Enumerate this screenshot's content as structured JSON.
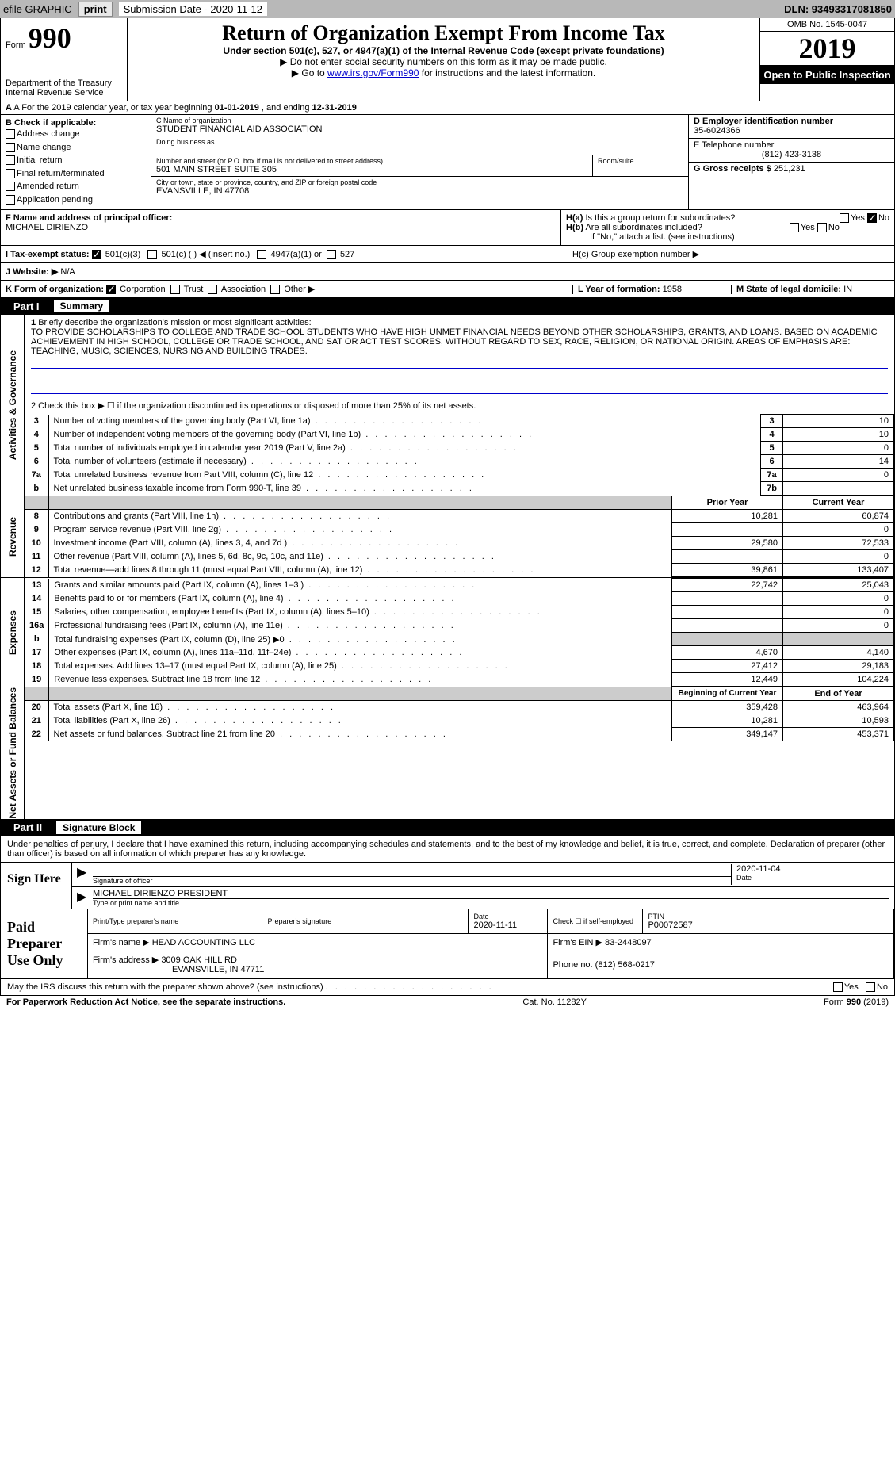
{
  "topbar": {
    "efile_label": "efile GRAPHIC",
    "print_btn": "print",
    "sub_date_label": "Submission Date - 2020-11-12",
    "dln": "DLN: 93493317081850"
  },
  "header": {
    "form_word": "Form",
    "form_number": "990",
    "dept": "Department of the Treasury\nInternal Revenue Service",
    "title": "Return of Organization Exempt From Income Tax",
    "subtitle": "Under section 501(c), 527, or 4947(a)(1) of the Internal Revenue Code (except private foundations)",
    "line1": "▶ Do not enter social security numbers on this form as it may be made public.",
    "line2_pre": "▶ Go to ",
    "line2_link": "www.irs.gov/Form990",
    "line2_post": " for instructions and the latest information.",
    "omb": "OMB No. 1545-0047",
    "year": "2019",
    "open_public": "Open to Public Inspection"
  },
  "row_a": {
    "text_pre": "A For the 2019 calendar year, or tax year beginning ",
    "begin": "01-01-2019",
    "mid": " , and ending ",
    "end": "12-31-2019"
  },
  "section_b": {
    "header": "B Check if applicable:",
    "addr_change": "Address change",
    "name_change": "Name change",
    "initial_return": "Initial return",
    "final_return": "Final return/terminated",
    "amended": "Amended return",
    "app_pending": "Application pending"
  },
  "section_c": {
    "name_label": "C Name of organization",
    "org_name": "STUDENT FINANCIAL AID ASSOCIATION",
    "dba_label": "Doing business as",
    "dba": "",
    "street_label": "Number and street (or P.O. box if mail is not delivered to street address)",
    "street": "501 MAIN STREET SUITE 305",
    "room_label": "Room/suite",
    "city_label": "City or town, state or province, country, and ZIP or foreign postal code",
    "city": "EVANSVILLE, IN  47708"
  },
  "section_d": {
    "ein_label": "D Employer identification number",
    "ein": "35-6024366",
    "phone_label": "E Telephone number",
    "phone": "(812) 423-3138",
    "gross_label": "G Gross receipts $",
    "gross": "251,231"
  },
  "section_f": {
    "label": "F Name and address of principal officer:",
    "name": "MICHAEL DIRIENZO"
  },
  "section_h": {
    "ha_label": "H(a) Is this a group return for subordinates?",
    "hb_label": "H(b) Are all subordinates included?",
    "hb_note": "If \"No,\" attach a list. (see instructions)",
    "hc_label": "H(c) Group exemption number ▶",
    "yes": "Yes",
    "no": "No"
  },
  "row_i": {
    "label": "I   Tax-exempt status:",
    "c3": "501(c)(3)",
    "c": "501(c) (   ) ◀ (insert no.)",
    "a1": "4947(a)(1) or",
    "s527": "527"
  },
  "row_j": {
    "label": "J   Website: ▶",
    "value": "N/A"
  },
  "row_k": {
    "label": "K Form of organization:",
    "corp": "Corporation",
    "trust": "Trust",
    "assoc": "Association",
    "other": "Other ▶",
    "l_label": "L Year of formation:",
    "l_value": "1958",
    "m_label": "M State of legal domicile:",
    "m_value": "IN"
  },
  "part1": {
    "part_num": "Part I",
    "title": "Summary"
  },
  "governance": {
    "side": "Activities & Governance",
    "line1_label": "1  Briefly describe the organization's mission or most significant activities:",
    "mission": "TO PROVIDE SCHOLARSHIPS TO COLLEGE AND TRADE SCHOOL STUDENTS WHO HAVE HIGH UNMET FINANCIAL NEEDS BEYOND OTHER SCHOLARSHIPS, GRANTS, AND LOANS. BASED ON ACADEMIC ACHIEVEMENT IN HIGH SCHOOL, COLLEGE OR TRADE SCHOOL, AND SAT OR ACT TEST SCORES, WITHOUT REGARD TO SEX, RACE, RELIGION, OR NATIONAL ORIGIN. AREAS OF EMPHASIS ARE: TEACHING, MUSIC, SCIENCES, NURSING AND BUILDING TRADES.",
    "line2": "2   Check this box ▶ ☐ if the organization discontinued its operations or disposed of more than 25% of its net assets.",
    "lines": [
      {
        "num": "3",
        "desc": "Number of voting members of the governing body (Part VI, line 1a)",
        "box": "3",
        "val": "10"
      },
      {
        "num": "4",
        "desc": "Number of independent voting members of the governing body (Part VI, line 1b)",
        "box": "4",
        "val": "10"
      },
      {
        "num": "5",
        "desc": "Total number of individuals employed in calendar year 2019 (Part V, line 2a)",
        "box": "5",
        "val": "0"
      },
      {
        "num": "6",
        "desc": "Total number of volunteers (estimate if necessary)",
        "box": "6",
        "val": "14"
      },
      {
        "num": "7a",
        "desc": "Total unrelated business revenue from Part VIII, column (C), line 12",
        "box": "7a",
        "val": "0"
      },
      {
        "num": "b",
        "desc": "Net unrelated business taxable income from Form 990-T, line 39",
        "box": "7b",
        "val": ""
      }
    ]
  },
  "revenue": {
    "side": "Revenue",
    "header_prior": "Prior Year",
    "header_current": "Current Year",
    "lines": [
      {
        "num": "8",
        "desc": "Contributions and grants (Part VIII, line 1h)",
        "prior": "10,281",
        "current": "60,874"
      },
      {
        "num": "9",
        "desc": "Program service revenue (Part VIII, line 2g)",
        "prior": "",
        "current": "0"
      },
      {
        "num": "10",
        "desc": "Investment income (Part VIII, column (A), lines 3, 4, and 7d )",
        "prior": "29,580",
        "current": "72,533"
      },
      {
        "num": "11",
        "desc": "Other revenue (Part VIII, column (A), lines 5, 6d, 8c, 9c, 10c, and 11e)",
        "prior": "",
        "current": "0"
      },
      {
        "num": "12",
        "desc": "Total revenue—add lines 8 through 11 (must equal Part VIII, column (A), line 12)",
        "prior": "39,861",
        "current": "133,407"
      }
    ]
  },
  "expenses": {
    "side": "Expenses",
    "lines": [
      {
        "num": "13",
        "desc": "Grants and similar amounts paid (Part IX, column (A), lines 1–3 )",
        "prior": "22,742",
        "current": "25,043"
      },
      {
        "num": "14",
        "desc": "Benefits paid to or for members (Part IX, column (A), line 4)",
        "prior": "",
        "current": "0"
      },
      {
        "num": "15",
        "desc": "Salaries, other compensation, employee benefits (Part IX, column (A), lines 5–10)",
        "prior": "",
        "current": "0"
      },
      {
        "num": "16a",
        "desc": "Professional fundraising fees (Part IX, column (A), line 11e)",
        "prior": "",
        "current": "0"
      },
      {
        "num": "b",
        "desc": "Total fundraising expenses (Part IX, column (D), line 25) ▶0",
        "prior": "gray",
        "current": "gray"
      },
      {
        "num": "17",
        "desc": "Other expenses (Part IX, column (A), lines 11a–11d, 11f–24e)",
        "prior": "4,670",
        "current": "4,140"
      },
      {
        "num": "18",
        "desc": "Total expenses. Add lines 13–17 (must equal Part IX, column (A), line 25)",
        "prior": "27,412",
        "current": "29,183"
      },
      {
        "num": "19",
        "desc": "Revenue less expenses. Subtract line 18 from line 12",
        "prior": "12,449",
        "current": "104,224"
      }
    ]
  },
  "netassets": {
    "side": "Net Assets or Fund Balances",
    "header_begin": "Beginning of Current Year",
    "header_end": "End of Year",
    "lines": [
      {
        "num": "20",
        "desc": "Total assets (Part X, line 16)",
        "prior": "359,428",
        "current": "463,964"
      },
      {
        "num": "21",
        "desc": "Total liabilities (Part X, line 26)",
        "prior": "10,281",
        "current": "10,593"
      },
      {
        "num": "22",
        "desc": "Net assets or fund balances. Subtract line 21 from line 20",
        "prior": "349,147",
        "current": "453,371"
      }
    ]
  },
  "part2": {
    "part_num": "Part II",
    "title": "Signature Block",
    "declaration": "Under penalties of perjury, I declare that I have examined this return, including accompanying schedules and statements, and to the best of my knowledge and belief, it is true, correct, and complete. Declaration of preparer (other than officer) is based on all information of which preparer has any knowledge."
  },
  "sign_here": {
    "label": "Sign Here",
    "sig_label": "Signature of officer",
    "date": "2020-11-04",
    "date_label": "Date",
    "name": "MICHAEL DIRIENZO PRESIDENT",
    "name_label": "Type or print name and title"
  },
  "preparer": {
    "label": "Paid Preparer Use Only",
    "print_name_label": "Print/Type preparer's name",
    "sig_label": "Preparer's signature",
    "date_label": "Date",
    "date": "2020-11-11",
    "check_label": "Check ☐ if self-employed",
    "ptin_label": "PTIN",
    "ptin": "P00072587",
    "firm_name_label": "Firm's name    ▶",
    "firm_name": "HEAD ACCOUNTING LLC",
    "firm_ein_label": "Firm's EIN ▶",
    "firm_ein": "83-2448097",
    "firm_addr_label": "Firm's address ▶",
    "firm_addr": "3009 OAK HILL RD",
    "firm_city": "EVANSVILLE, IN  47711",
    "phone_label": "Phone no.",
    "phone": "(812) 568-0217"
  },
  "irs_discuss": {
    "text": "May the IRS discuss this return with the preparer shown above? (see instructions)",
    "yes": "Yes",
    "no": "No"
  },
  "footer": {
    "left": "For Paperwork Reduction Act Notice, see the separate instructions.",
    "center": "Cat. No. 11282Y",
    "right_pre": "Form ",
    "right_form": "990",
    "right_post": " (2019)"
  },
  "colors": {
    "topbar_bg": "#b8b8b8",
    "link": "#0000cc",
    "black": "#000000",
    "gray_cell": "#cccccc"
  }
}
